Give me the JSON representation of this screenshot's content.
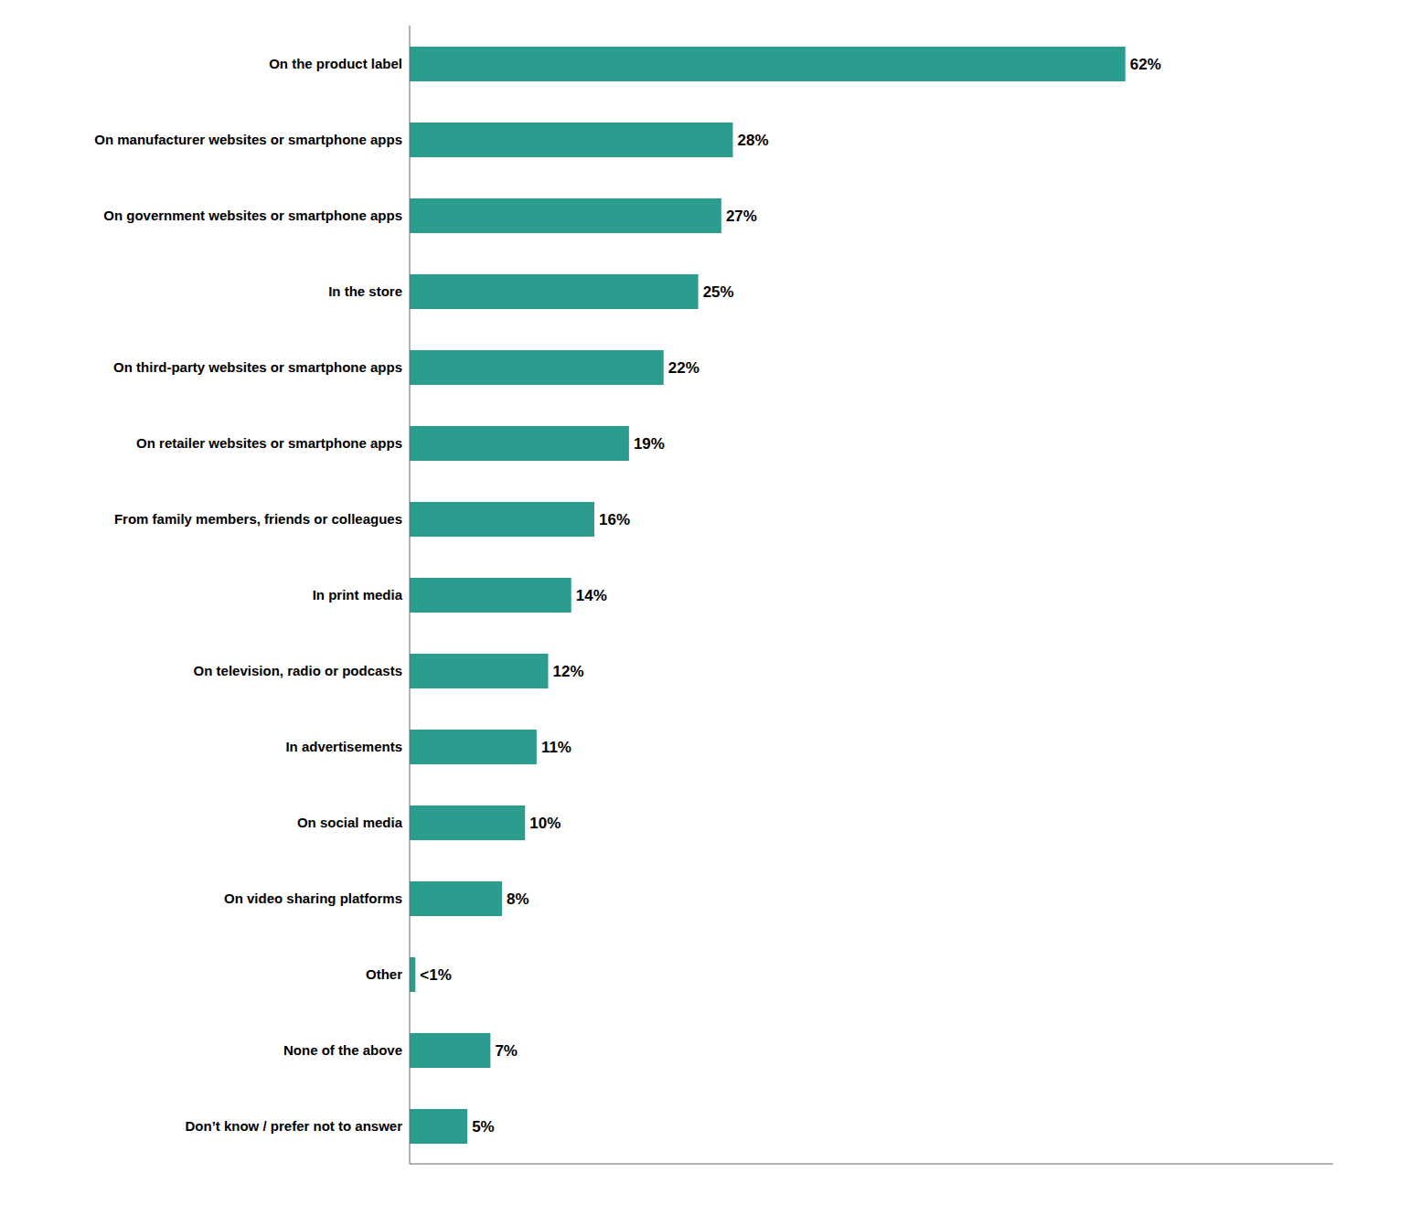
{
  "chart_data": {
    "type": "bar",
    "orientation": "horizontal",
    "categories": [
      "Don’t know / prefer not to answer",
      "None of the above",
      "Other",
      "On video sharing platforms",
      "On social media",
      "In advertisements",
      "On television, radio or podcasts",
      "In print media",
      "From family members, friends or colleagues",
      "On retailer websites or smartphone apps",
      "On third-party websites or smartphone apps",
      "In the store",
      "On government websites or smartphone apps",
      "On manufacturer websites or smartphone apps",
      "On the product label"
    ],
    "values": [
      5,
      7,
      0.5,
      8,
      10,
      11,
      12,
      14,
      16,
      19,
      22,
      25,
      27,
      28,
      62
    ],
    "value_labels": [
      "5%",
      "7%",
      "<1%",
      "8%",
      "10%",
      "11%",
      "12%",
      "14%",
      "16%",
      "19%",
      "22%",
      "25%",
      "27%",
      "28%",
      "62%"
    ],
    "data_labels": true,
    "color": "#2A9D8F",
    "xlim": [
      0,
      80
    ],
    "tick_labels": "y",
    "grid": false
  }
}
